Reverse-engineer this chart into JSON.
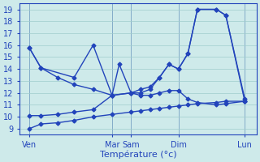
{
  "xlabel": "Température (°c)",
  "background_color": "#ceeaea",
  "grid_color": "#a0cccc",
  "line_color": "#2244bb",
  "xlim": [
    0,
    1
  ],
  "ylim": [
    8.5,
    19.5
  ],
  "yticks": [
    9,
    10,
    11,
    12,
    13,
    14,
    15,
    16,
    17,
    18,
    19
  ],
  "xtick_labels": [
    "Ven",
    "Mar",
    "Sam",
    "Dim",
    "Lun"
  ],
  "xtick_positions": [
    0.04,
    0.39,
    0.47,
    0.67,
    0.95
  ],
  "vline_positions": [
    0.04,
    0.39,
    0.47,
    0.67,
    0.95
  ],
  "lines": [
    {
      "x": [
        0.04,
        0.09,
        0.23,
        0.31,
        0.39,
        0.42,
        0.47,
        0.51,
        0.55,
        0.59,
        0.63,
        0.67,
        0.71,
        0.75,
        0.83,
        0.87,
        0.95
      ],
      "y": [
        15.8,
        14.1,
        13.3,
        16.0,
        11.8,
        14.4,
        12.0,
        12.0,
        12.3,
        13.3,
        14.4,
        14.0,
        15.3,
        19.0,
        19.0,
        18.5,
        11.5
      ]
    },
    {
      "x": [
        0.04,
        0.09,
        0.16,
        0.23,
        0.31,
        0.39,
        0.47,
        0.51,
        0.55,
        0.59,
        0.63,
        0.67,
        0.71,
        0.75,
        0.83,
        0.87,
        0.95
      ],
      "y": [
        15.8,
        14.1,
        13.3,
        12.7,
        12.3,
        11.8,
        12.0,
        12.3,
        12.5,
        13.3,
        14.4,
        14.0,
        15.3,
        19.0,
        19.0,
        18.5,
        11.3
      ]
    },
    {
      "x": [
        0.04,
        0.09,
        0.16,
        0.23,
        0.31,
        0.39,
        0.47,
        0.51,
        0.55,
        0.59,
        0.63,
        0.67,
        0.71,
        0.75,
        0.83,
        0.87,
        0.95
      ],
      "y": [
        10.1,
        10.1,
        10.2,
        10.4,
        10.6,
        11.8,
        12.0,
        11.8,
        11.8,
        12.0,
        12.2,
        12.2,
        11.5,
        11.2,
        11.0,
        11.1,
        11.3
      ]
    },
    {
      "x": [
        0.04,
        0.09,
        0.16,
        0.23,
        0.31,
        0.39,
        0.47,
        0.51,
        0.55,
        0.59,
        0.63,
        0.67,
        0.71,
        0.75,
        0.83,
        0.87,
        0.95
      ],
      "y": [
        9.0,
        9.4,
        9.5,
        9.7,
        10.0,
        10.2,
        10.4,
        10.5,
        10.6,
        10.7,
        10.8,
        10.9,
        11.0,
        11.1,
        11.2,
        11.3,
        11.3
      ]
    }
  ],
  "marker": "D",
  "markersize": 2.5,
  "linewidth": 1.0,
  "font_color": "#2244bb",
  "font_size": 7,
  "xlabel_fontsize": 8
}
